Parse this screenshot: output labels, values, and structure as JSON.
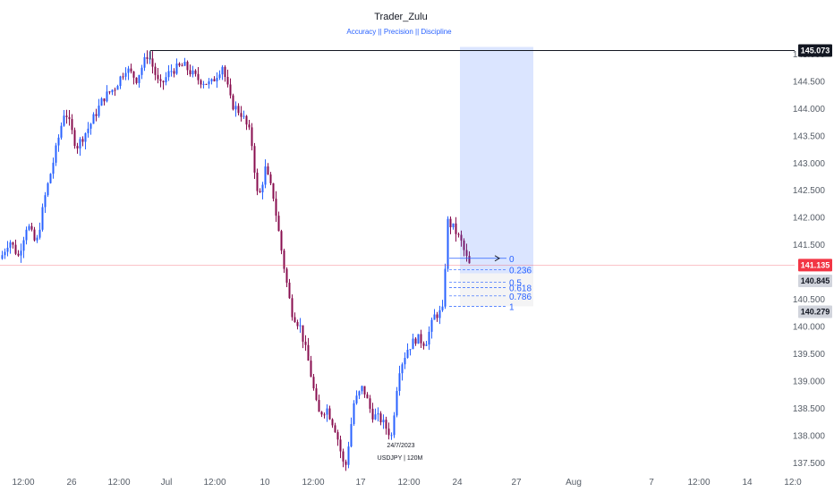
{
  "chart_data": {
    "type": "candlestick",
    "title": "Trader_Zulu",
    "subtitle": "Accuracy || Precision || Discipline",
    "symbol_note": "USDJPY | 120M",
    "date_note": "24/7/2023",
    "ylim": [
      137.3,
      146.0
    ],
    "y_ticks": [
      {
        "value": 145.0,
        "label": "145.000"
      },
      {
        "value": 144.5,
        "label": "144.500"
      },
      {
        "value": 144.0,
        "label": "144.000"
      },
      {
        "value": 143.5,
        "label": "143.500"
      },
      {
        "value": 143.0,
        "label": "143.000"
      },
      {
        "value": 142.5,
        "label": "142.500"
      },
      {
        "value": 142.0,
        "label": "142.000"
      },
      {
        "value": 141.5,
        "label": "141.500"
      },
      {
        "value": 140.5,
        "label": "140.500"
      },
      {
        "value": 140.0,
        "label": "140.000"
      },
      {
        "value": 139.5,
        "label": "139.500"
      },
      {
        "value": 139.0,
        "label": "139.000"
      },
      {
        "value": 138.5,
        "label": "138.500"
      },
      {
        "value": 138.0,
        "label": "138.000"
      },
      {
        "value": 137.5,
        "label": "137.500"
      }
    ],
    "x_ticks": [
      "12:00",
      "26",
      "12:00",
      "Jul",
      "12:00",
      "10",
      "12:00",
      "17",
      "12:00",
      "24",
      "27",
      "Aug",
      "7",
      "12:00",
      "14",
      "12:0"
    ],
    "price_tags": [
      {
        "value": 145.073,
        "label": "145.073",
        "bg": "#131722",
        "fg": "#ffffff"
      },
      {
        "value": 141.135,
        "label": "141.135",
        "bg": "#f23645",
        "fg": "#ffffff"
      },
      {
        "value": 140.845,
        "label": "140.845",
        "bg": "#d1d4dc",
        "fg": "#131722"
      },
      {
        "value": 140.279,
        "label": "140.279",
        "bg": "#d1d4dc",
        "fg": "#131722"
      }
    ],
    "high_line": 145.073,
    "current_price": 141.135,
    "fib_levels": [
      {
        "label": "0",
        "value": 141.26
      },
      {
        "label": "0.236",
        "value": 141.05
      },
      {
        "label": "0.5",
        "value": 140.82
      },
      {
        "label": "0.618",
        "value": 140.72
      },
      {
        "label": "0.786",
        "value": 140.57
      },
      {
        "label": "1",
        "value": 140.38
      }
    ],
    "anchors": [
      {
        "label": "high",
        "value": 145.073
      },
      {
        "label": "low",
        "value": 137.35
      },
      {
        "label": "pre_gap",
        "value": 140.3
      },
      {
        "label": "spike_high",
        "value": 141.95
      },
      {
        "label": "last",
        "value": 141.135
      }
    ],
    "colors": {
      "up": "#2962ff",
      "down": "#880e4f",
      "box": "#2962ff",
      "grid": "#f0f3fa"
    }
  }
}
